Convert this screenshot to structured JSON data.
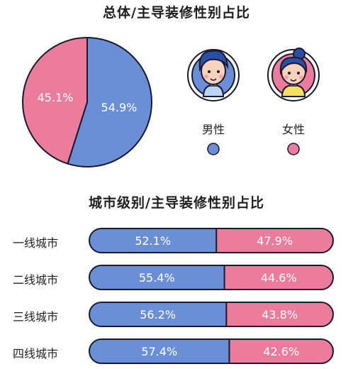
{
  "chart_data": [
    {
      "type": "pie",
      "title": "总体/主导装修性别占比",
      "slices": [
        {
          "label": "男性",
          "value": 54.9,
          "text": "54.9%",
          "color": "#6b8fd6"
        },
        {
          "label": "女性",
          "value": 45.1,
          "text": "45.1%",
          "color": "#ec7c9c"
        }
      ]
    },
    {
      "type": "bar",
      "stacked": true,
      "orientation": "horizontal",
      "title": "城市级别/主导装修性别占比",
      "categories": [
        "一线城市",
        "二线城市",
        "三线城市",
        "四线城市"
      ],
      "series": [
        {
          "name": "男性",
          "values": [
            52.1,
            55.4,
            56.2,
            57.4
          ],
          "labels": [
            "52.1%",
            "55.4%",
            "56.2%",
            "57.4%"
          ],
          "color": "#6b8fd6"
        },
        {
          "name": "女性",
          "values": [
            47.9,
            44.6,
            43.8,
            42.6
          ],
          "labels": [
            "47.9%",
            "44.6%",
            "43.8%",
            "42.6%"
          ],
          "color": "#ec7c9c"
        }
      ]
    }
  ],
  "legend": {
    "male_label": "男性",
    "female_label": "女性",
    "male_icon": "male-avatar-icon",
    "female_icon": "female-avatar-icon"
  },
  "colors": {
    "male": "#6b8fd6",
    "female": "#ec7c9c",
    "outline": "#1a1a2e"
  }
}
